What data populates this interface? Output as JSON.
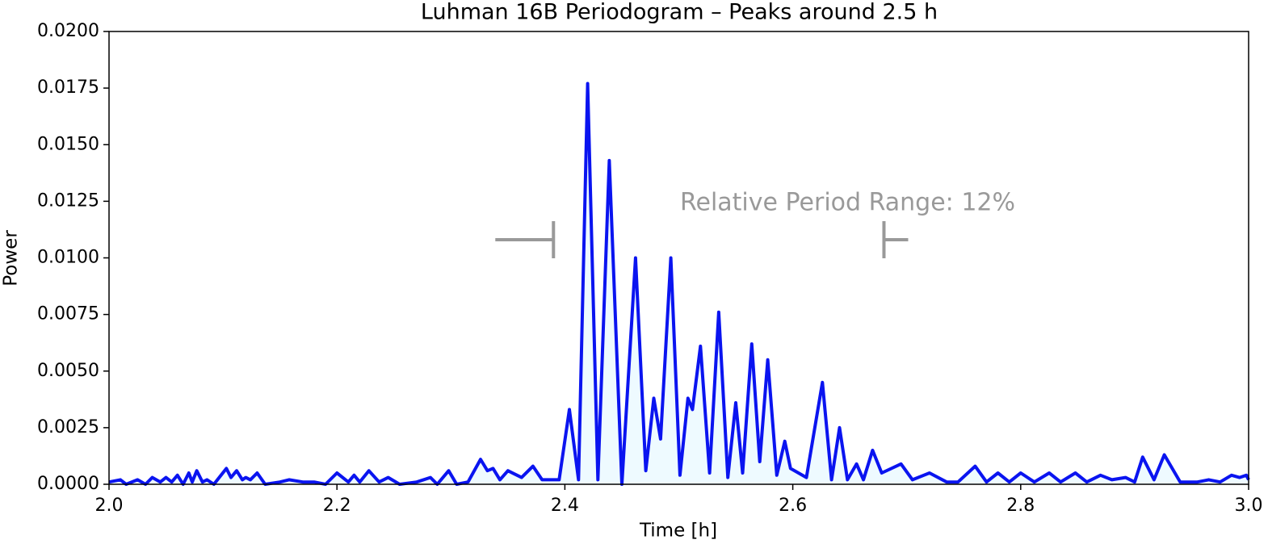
{
  "chart_data": {
    "type": "line",
    "title": "Luhman 16B Periodogram – Peaks around 2.5 h",
    "x_label": "Time [h]",
    "y_label": "Power",
    "xlim": [
      2.0,
      3.0
    ],
    "xticks": [
      {
        "value": 2.0,
        "label": "2.0"
      },
      {
        "value": 2.2,
        "label": "2.2"
      },
      {
        "value": 2.4,
        "label": "2.4"
      },
      {
        "value": 2.6,
        "label": "2.6"
      },
      {
        "value": 2.8,
        "label": "2.8"
      },
      {
        "value": 3.0,
        "label": "3.0"
      }
    ],
    "ylim": [
      0,
      0.02
    ],
    "yticks": [
      {
        "value": 0,
        "label": "0.0000"
      },
      {
        "value": 0.0025,
        "label": "0.0025"
      },
      {
        "value": 0.005,
        "label": "0.0050"
      },
      {
        "value": 0.0075,
        "label": "0.0075"
      },
      {
        "value": 0.01,
        "label": "0.0100"
      },
      {
        "value": 0.0125,
        "label": "0.0125"
      },
      {
        "value": 0.015,
        "label": "0.0150"
      },
      {
        "value": 0.0175,
        "label": "0.0175"
      },
      {
        "value": 0.02,
        "label": "0.0200"
      }
    ],
    "grid": false,
    "fill_color": "#eefaff",
    "x": [
      2.0,
      2.01,
      2.015,
      2.025,
      2.032,
      2.038,
      2.045,
      2.05,
      2.055,
      2.06,
      2.065,
      2.07,
      2.073,
      2.077,
      2.082,
      2.086,
      2.092,
      2.103,
      2.107,
      2.112,
      2.117,
      2.12,
      2.124,
      2.13,
      2.137,
      2.15,
      2.158,
      2.17,
      2.18,
      2.19,
      2.2,
      2.21,
      2.215,
      2.22,
      2.228,
      2.237,
      2.245,
      2.255,
      2.27,
      2.282,
      2.288,
      2.298,
      2.305,
      2.315,
      2.326,
      2.332,
      2.337,
      2.343,
      2.35,
      2.362,
      2.372,
      2.38,
      2.395,
      2.404,
      2.412,
      2.42,
      2.429,
      2.439,
      2.45,
      2.462,
      2.471,
      2.478,
      2.484,
      2.493,
      2.501,
      2.508,
      2.512,
      2.519,
      2.527,
      2.535,
      2.543,
      2.55,
      2.556,
      2.564,
      2.571,
      2.578,
      2.586,
      2.593,
      2.598,
      2.612,
      2.626,
      2.634,
      2.641,
      2.648,
      2.656,
      2.662,
      2.67,
      2.678,
      2.695,
      2.705,
      2.72,
      2.735,
      2.745,
      2.76,
      2.77,
      2.78,
      2.79,
      2.8,
      2.812,
      2.825,
      2.835,
      2.848,
      2.858,
      2.87,
      2.88,
      2.892,
      2.9,
      2.907,
      2.917,
      2.926,
      2.94,
      2.955,
      2.965,
      2.975,
      2.985,
      2.992,
      2.998,
      3.0
    ],
    "series": [
      {
        "name": "Power",
        "color": "#0a14f0",
        "values": [
          0.0001,
          0.0002,
          0.0,
          0.0002,
          0.0,
          0.0003,
          0.0001,
          0.0003,
          0.0001,
          0.0004,
          0.0,
          0.0005,
          0.0001,
          0.0006,
          0.0001,
          0.0002,
          0.0,
          0.0007,
          0.0003,
          0.0006,
          0.0002,
          0.0003,
          0.0002,
          0.0005,
          0.0,
          0.0001,
          0.0002,
          0.0001,
          0.0001,
          0.0,
          0.0005,
          0.0001,
          0.0004,
          0.0001,
          0.0006,
          0.0001,
          0.0003,
          0.0,
          0.0001,
          0.0003,
          0.0,
          0.0006,
          0.0,
          0.0001,
          0.0011,
          0.0006,
          0.0007,
          0.0002,
          0.0006,
          0.0003,
          0.0008,
          0.0002,
          0.0002,
          0.0033,
          0.0002,
          0.0177,
          0.0002,
          0.0143,
          0.0,
          0.01,
          0.0006,
          0.0038,
          0.002,
          0.01,
          0.0004,
          0.0038,
          0.0033,
          0.0061,
          0.0005,
          0.0076,
          0.0003,
          0.0036,
          0.0005,
          0.0062,
          0.001,
          0.0055,
          0.0004,
          0.0019,
          0.0007,
          0.0003,
          0.0045,
          0.0002,
          0.0025,
          0.0002,
          0.0009,
          0.0002,
          0.0015,
          0.0005,
          0.0009,
          0.0002,
          0.0005,
          0.0001,
          0.0001,
          0.0008,
          0.0001,
          0.0005,
          0.0001,
          0.0005,
          0.0001,
          0.0005,
          0.0001,
          0.0005,
          0.0001,
          0.0004,
          0.0002,
          0.0003,
          0.0001,
          0.0012,
          0.0002,
          0.0013,
          0.0001,
          0.0001,
          0.0002,
          0.0001,
          0.0004,
          0.0003,
          0.0004,
          0.0002
        ]
      }
    ],
    "annotation": {
      "text": "Relative Period Range: 12%",
      "range": [
        2.39,
        2.68
      ],
      "y": 0.0108,
      "color": "#999999"
    }
  }
}
